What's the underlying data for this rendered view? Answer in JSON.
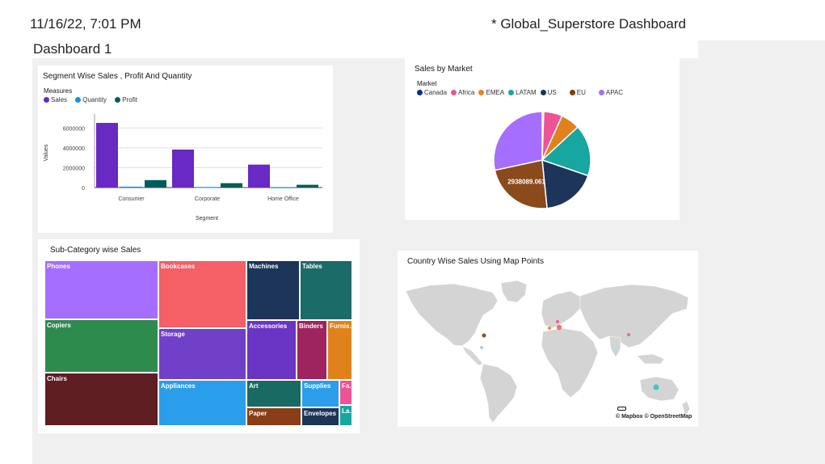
{
  "header": {
    "timestamp": "11/16/22, 7:01 PM",
    "title": "* Global_Superstore Dashboard",
    "dashboard_name": "Dashboard 1"
  },
  "segment_chart": {
    "title": "Segment Wise Sales , Profit And Quantity",
    "legend_title": "Measures",
    "legend": [
      {
        "label": "Sales",
        "color": "#6929c4"
      },
      {
        "label": "Quantity",
        "color": "#1192e8"
      },
      {
        "label": "Profit",
        "color": "#005d5d"
      }
    ]
  },
  "market_chart": {
    "title": "Sales by Market",
    "legend_title": "Market",
    "legend": [
      {
        "label": "Canada",
        "color": "#002d9c"
      },
      {
        "label": "Africa",
        "color": "#ee5396"
      },
      {
        "label": "EMEA",
        "color": "#e8831f"
      },
      {
        "label": "LATAM",
        "color": "#17a6a0"
      },
      {
        "label": "US",
        "color": "#1c3558"
      },
      {
        "label": "EU",
        "color": "#8a3800"
      },
      {
        "label": "APAC",
        "color": "#a56eff"
      }
    ]
  },
  "subcategory_chart": {
    "title": "Sub-Category wise Sales",
    "cells": [
      {
        "label": "Phones",
        "color": "#a56eff"
      },
      {
        "label": "Copiers",
        "color": "#2e8b4e"
      },
      {
        "label": "Chairs",
        "color": "#5e1e22"
      },
      {
        "label": "Bookcases",
        "color": "#f55f66"
      },
      {
        "label": "Storage",
        "color": "#7140c9"
      },
      {
        "label": "Appliances",
        "color": "#2a9eea"
      },
      {
        "label": "Machines",
        "color": "#1c3558"
      },
      {
        "label": "Tables",
        "color": "#1b6b68"
      },
      {
        "label": "Accessories",
        "color": "#6a34c4"
      },
      {
        "label": "Binders",
        "color": "#9e2460"
      },
      {
        "label": "Furnis...",
        "color": "#e0821c"
      },
      {
        "label": "Art",
        "color": "#186a62"
      },
      {
        "label": "Supplies",
        "color": "#2a9eea"
      },
      {
        "label": "Fa...",
        "color": "#ee5396"
      },
      {
        "label": "Paper",
        "color": "#8a3d16"
      },
      {
        "label": "Envelopes",
        "color": "#1c3558"
      },
      {
        "label": "La...",
        "color": "#17a6a0"
      }
    ]
  },
  "map_chart": {
    "title": "Country Wise Sales Using Map Points",
    "attribution": "© Mapbox © OpenStreetMap",
    "points": [
      {
        "color": "#8a3800"
      },
      {
        "color": "#a0c4ff"
      },
      {
        "color": "#ee5396"
      },
      {
        "color": "#f55f66"
      },
      {
        "color": "#e8831f"
      },
      {
        "color": "#f55f66"
      },
      {
        "color": "#a0e0ff"
      },
      {
        "color": "#33c1c1"
      }
    ]
  },
  "chart_data": [
    {
      "type": "bar",
      "title": "Segment Wise Sales , Profit And Quantity",
      "categories": [
        "Consumer",
        "Corporate",
        "Home Office"
      ],
      "series": [
        {
          "name": "Sales",
          "values": [
            6507949,
            3824698,
            2309855
          ]
        },
        {
          "name": "Quantity",
          "values": [
            91000,
            55000,
            33000
          ]
        },
        {
          "name": "Profit",
          "values": [
            749240,
            441208,
            277010
          ]
        }
      ],
      "xlabel": "Segment",
      "ylabel": "Values",
      "yticks": [
        "0",
        "2000000",
        "4000000",
        "6000000"
      ],
      "ylim": [
        0,
        7000000
      ]
    },
    {
      "type": "pie",
      "title": "Sales by Market",
      "labels": [
        "Canada",
        "Africa",
        "EMEA",
        "LATAM",
        "US",
        "EU",
        "APAC"
      ],
      "values": [
        66928,
        783773,
        806161,
        2164605,
        2297201,
        2938089.061,
        3585745
      ],
      "annotations": [
        "2938089.061"
      ]
    }
  ]
}
